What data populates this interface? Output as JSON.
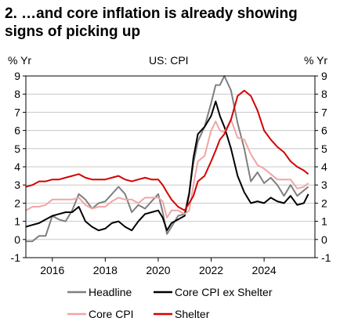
{
  "chart_data": {
    "type": "line",
    "title_lines": [
      "2. …and core inflation is already showing",
      "signs of picking up"
    ],
    "subtitle": "US: CPI",
    "ylabel_left": "% Yr",
    "ylabel_right": "% Yr",
    "ylim": [
      -1,
      9
    ],
    "yticks": [
      "-1",
      "0",
      "1",
      "2",
      "3",
      "4",
      "5",
      "6",
      "7",
      "8",
      "9"
    ],
    "xlim": [
      2015.0,
      2025.92
    ],
    "xticks": [
      "2016",
      "2018",
      "2020",
      "2022",
      "2024"
    ],
    "grid": true,
    "legend_position": "bottom",
    "series": [
      {
        "name": "Headline",
        "color": "#7f7f7f",
        "x": [
          2015.0,
          2015.25,
          2015.5,
          2015.75,
          2016.0,
          2016.25,
          2016.5,
          2016.75,
          2017.0,
          2017.25,
          2017.5,
          2017.75,
          2018.0,
          2018.25,
          2018.5,
          2018.75,
          2019.0,
          2019.25,
          2019.5,
          2019.75,
          2020.0,
          2020.17,
          2020.33,
          2020.5,
          2020.75,
          2021.0,
          2021.17,
          2021.33,
          2021.5,
          2021.75,
          2022.0,
          2022.17,
          2022.33,
          2022.5,
          2022.75,
          2023.0,
          2023.25,
          2023.5,
          2023.75,
          2024.0,
          2024.25,
          2024.5,
          2024.75,
          2025.0,
          2025.25,
          2025.5,
          2025.67
        ],
        "values": [
          -0.1,
          -0.1,
          0.2,
          0.2,
          1.3,
          1.1,
          1.0,
          1.6,
          2.5,
          2.2,
          1.7,
          2.0,
          2.1,
          2.5,
          2.9,
          2.5,
          1.5,
          1.9,
          1.7,
          2.1,
          2.5,
          1.5,
          0.3,
          0.7,
          1.3,
          1.4,
          2.6,
          4.2,
          5.4,
          6.2,
          7.5,
          8.5,
          8.5,
          9.0,
          8.2,
          6.4,
          5.0,
          3.2,
          3.7,
          3.1,
          3.4,
          3.0,
          2.4,
          3.0,
          2.4,
          2.7,
          2.9
        ]
      },
      {
        "name": "Core CPI ex Shelter",
        "color": "#000000",
        "x": [
          2015.0,
          2015.25,
          2015.5,
          2015.75,
          2016.0,
          2016.25,
          2016.5,
          2016.75,
          2017.0,
          2017.25,
          2017.5,
          2017.75,
          2018.0,
          2018.25,
          2018.5,
          2018.75,
          2019.0,
          2019.25,
          2019.5,
          2019.75,
          2020.0,
          2020.17,
          2020.33,
          2020.5,
          2020.75,
          2021.0,
          2021.17,
          2021.33,
          2021.5,
          2021.75,
          2022.0,
          2022.17,
          2022.33,
          2022.5,
          2022.75,
          2023.0,
          2023.25,
          2023.5,
          2023.75,
          2024.0,
          2024.25,
          2024.5,
          2024.75,
          2025.0,
          2025.25,
          2025.5,
          2025.67
        ],
        "values": [
          0.7,
          0.8,
          0.9,
          1.1,
          1.3,
          1.4,
          1.5,
          1.5,
          1.8,
          1.0,
          0.7,
          0.5,
          0.6,
          0.9,
          1.0,
          0.7,
          0.5,
          1.0,
          1.4,
          1.5,
          1.6,
          1.2,
          0.5,
          0.9,
          1.1,
          1.3,
          2.5,
          4.5,
          5.8,
          6.2,
          6.8,
          7.6,
          6.8,
          6.2,
          5.0,
          3.5,
          2.6,
          2.0,
          2.1,
          2.0,
          2.3,
          2.1,
          2.0,
          2.4,
          1.9,
          2.0,
          2.5
        ]
      },
      {
        "name": "Core CPI",
        "color": "#f0a5a5",
        "x": [
          2015.0,
          2015.25,
          2015.5,
          2015.75,
          2016.0,
          2016.25,
          2016.5,
          2016.75,
          2017.0,
          2017.25,
          2017.5,
          2017.75,
          2018.0,
          2018.25,
          2018.5,
          2018.75,
          2019.0,
          2019.25,
          2019.5,
          2019.75,
          2020.0,
          2020.17,
          2020.33,
          2020.5,
          2020.75,
          2021.0,
          2021.17,
          2021.33,
          2021.5,
          2021.75,
          2022.0,
          2022.17,
          2022.33,
          2022.5,
          2022.75,
          2023.0,
          2023.25,
          2023.5,
          2023.75,
          2024.0,
          2024.25,
          2024.5,
          2024.75,
          2025.0,
          2025.25,
          2025.5,
          2025.67
        ],
        "values": [
          1.6,
          1.8,
          1.8,
          1.9,
          2.2,
          2.2,
          2.2,
          2.2,
          2.3,
          1.9,
          1.7,
          1.8,
          1.8,
          2.1,
          2.3,
          2.2,
          2.2,
          2.0,
          2.3,
          2.3,
          2.3,
          2.1,
          1.2,
          1.6,
          1.6,
          1.4,
          1.6,
          3.0,
          4.3,
          4.6,
          6.0,
          6.5,
          6.0,
          5.9,
          6.6,
          5.6,
          5.5,
          4.7,
          4.1,
          3.9,
          3.6,
          3.3,
          3.3,
          3.3,
          2.8,
          2.9,
          3.1
        ]
      },
      {
        "name": "Shelter",
        "color": "#d40000",
        "x": [
          2015.0,
          2015.25,
          2015.5,
          2015.75,
          2016.0,
          2016.25,
          2016.5,
          2016.75,
          2017.0,
          2017.25,
          2017.5,
          2017.75,
          2018.0,
          2018.25,
          2018.5,
          2018.75,
          2019.0,
          2019.25,
          2019.5,
          2019.75,
          2020.0,
          2020.17,
          2020.33,
          2020.5,
          2020.75,
          2021.0,
          2021.17,
          2021.33,
          2021.5,
          2021.75,
          2022.0,
          2022.17,
          2022.33,
          2022.5,
          2022.75,
          2023.0,
          2023.25,
          2023.5,
          2023.75,
          2024.0,
          2024.25,
          2024.5,
          2024.75,
          2025.0,
          2025.25,
          2025.5,
          2025.67
        ],
        "values": [
          2.9,
          3.0,
          3.2,
          3.2,
          3.3,
          3.3,
          3.4,
          3.5,
          3.6,
          3.4,
          3.3,
          3.3,
          3.3,
          3.4,
          3.5,
          3.3,
          3.2,
          3.3,
          3.4,
          3.3,
          3.3,
          3.0,
          2.6,
          2.2,
          1.8,
          1.6,
          2.0,
          2.4,
          3.2,
          3.5,
          4.3,
          4.9,
          5.5,
          5.8,
          6.6,
          7.9,
          8.2,
          7.9,
          7.1,
          6.0,
          5.5,
          5.1,
          4.8,
          4.3,
          4.0,
          3.8,
          3.6
        ]
      }
    ]
  }
}
